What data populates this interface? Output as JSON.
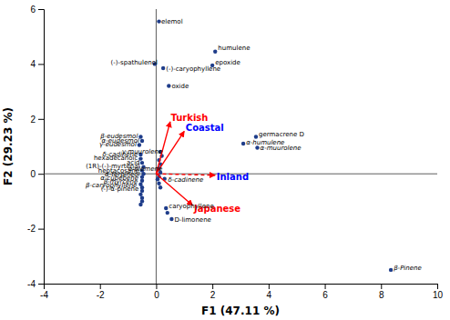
{
  "chart_data": {
    "type": "scatter",
    "xlabel": "F1 (47.11 %)",
    "ylabel": "F2 (29.23 %)",
    "xlim": [
      -4,
      10
    ],
    "ylim": [
      -4,
      6
    ],
    "xticks": [
      -4,
      -2,
      0,
      2,
      4,
      6,
      8,
      10
    ],
    "yticks": [
      -4,
      -2,
      0,
      2,
      4,
      6
    ],
    "x": [
      0.1,
      -0.05,
      0.25,
      0.45,
      2.1,
      2.0,
      3.55,
      3.1,
      3.6,
      8.35,
      -0.55,
      -0.5,
      -0.6,
      -0.55,
      -0.55,
      -0.5,
      -0.45,
      -0.5,
      -0.45,
      -0.5,
      -0.5,
      -0.55,
      -0.5,
      -0.5,
      -0.55,
      -0.5,
      -0.5,
      -0.55,
      0.15,
      0.2,
      0.1,
      0.15,
      0.1,
      0.15,
      0.1,
      0.05,
      0.1,
      0.15,
      0.3,
      0.35,
      0.55,
      0.4
    ],
    "values": [
      5.55,
      4.0,
      3.85,
      3.2,
      4.45,
      3.95,
      1.35,
      1.1,
      0.95,
      -3.5,
      1.35,
      1.2,
      1.05,
      0.7,
      0.55,
      0.4,
      0.25,
      0.12,
      0.0,
      -0.12,
      -0.25,
      -0.38,
      -0.5,
      -0.62,
      -0.75,
      -0.88,
      -1.0,
      -1.12,
      0.8,
      0.65,
      0.5,
      0.35,
      0.2,
      0.05,
      -0.1,
      -0.2,
      -0.35,
      -0.5,
      -0.18,
      -1.25,
      -1.65,
      -1.42
    ],
    "color": "#1f3d8a",
    "arrows": [
      {
        "name": "Turkish",
        "dx": 0.5,
        "dy": 1.9,
        "color": "red",
        "line_style": "solid",
        "label_x": 0.52,
        "label_y": 2.05,
        "label_color": "red"
      },
      {
        "name": "Coastal",
        "dx": 1.0,
        "dy": 1.55,
        "color": "red",
        "line_style": "solid",
        "label_x": 1.05,
        "label_y": 1.68,
        "label_color": "blue"
      },
      {
        "name": "Inland",
        "dx": 2.1,
        "dy": -0.05,
        "color": "red",
        "line_style": "dashed",
        "label_x": 2.15,
        "label_y": -0.1,
        "label_color": "blue"
      },
      {
        "name": "Japanese",
        "dx": 1.3,
        "dy": -1.15,
        "color": "red",
        "line_style": "solid",
        "label_x": 1.35,
        "label_y": -1.28,
        "label_color": "red"
      }
    ],
    "annotations": [
      {
        "text": "elemol",
        "x": 0.18,
        "y": 5.55,
        "anchor": "left"
      },
      {
        "text": "(-)-spathulenol",
        "x": 0.05,
        "y": 4.05,
        "anchor": "right"
      },
      {
        "text": "(-)-caryophyllene",
        "x": 0.35,
        "y": 3.82,
        "anchor": "left"
      },
      {
        "text": "oxide",
        "x": 0.55,
        "y": 3.2,
        "anchor": "left"
      },
      {
        "text": "humulene",
        "x": 2.2,
        "y": 4.58,
        "anchor": "left"
      },
      {
        "text": "epoxide",
        "x": 2.1,
        "y": 4.05,
        "anchor": "left"
      },
      {
        "text": "germacrene D",
        "x": 3.65,
        "y": 1.45,
        "anchor": "left"
      },
      {
        "text": "α-humulene",
        "x": 3.2,
        "y": 1.15,
        "anchor": "left"
      },
      {
        "text": "α-muurolene",
        "x": 3.7,
        "y": 0.95,
        "anchor": "left"
      },
      {
        "text": "β-Pinene",
        "x": 8.45,
        "y": -3.42,
        "anchor": "left"
      },
      {
        "text": "β-eudesmol",
        "x": -0.65,
        "y": 1.38,
        "anchor": "right"
      },
      {
        "text": "α-eudesmol",
        "x": -0.6,
        "y": 1.23,
        "anchor": "right"
      },
      {
        "text": "γ-eudesmol",
        "x": -0.7,
        "y": 1.08,
        "anchor": "right"
      },
      {
        "text": "δ-cadinene",
        "x": -0.65,
        "y": 0.72,
        "anchor": "right"
      },
      {
        "text": "hexadecanoic",
        "x": -0.65,
        "y": 0.57,
        "anchor": "right"
      },
      {
        "text": "acid",
        "x": -0.58,
        "y": 0.42,
        "anchor": "right"
      },
      {
        "text": "(1R)-(-)-myrtenal",
        "x": -0.58,
        "y": 0.27,
        "anchor": "right"
      },
      {
        "text": "heptacosane",
        "x": -0.6,
        "y": 0.12,
        "anchor": "right"
      },
      {
        "text": "α-terpineol",
        "x": -0.58,
        "y": -0.02,
        "anchor": "right"
      },
      {
        "text": "α-cubebene",
        "x": -0.63,
        "y": -0.15,
        "anchor": "right"
      },
      {
        "text": "β-myrcene",
        "x": -0.65,
        "y": -0.28,
        "anchor": "right"
      },
      {
        "text": "β-caryophyllene",
        "x": -0.68,
        "y": -0.42,
        "anchor": "right"
      },
      {
        "text": "(-)-α-pinene",
        "x": -0.62,
        "y": -0.55,
        "anchor": "right"
      },
      {
        "text": "γ-muurolene",
        "x": 0.22,
        "y": 0.83,
        "anchor": "right"
      },
      {
        "text": "α-elemene",
        "x": 0.22,
        "y": 0.2,
        "anchor": "right"
      },
      {
        "text": "δ-cadinene",
        "x": 0.42,
        "y": -0.22,
        "anchor": "left"
      },
      {
        "text": "caryophyllene",
        "x": 0.45,
        "y": -1.18,
        "anchor": "left"
      },
      {
        "text": "D-limonene",
        "x": 0.65,
        "y": -1.68,
        "anchor": "left"
      }
    ]
  }
}
